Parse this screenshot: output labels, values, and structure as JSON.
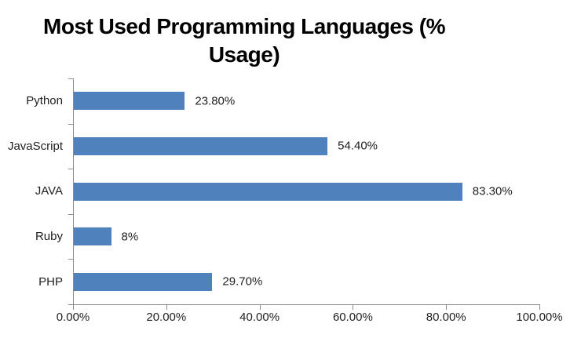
{
  "chart_data": {
    "type": "bar",
    "orientation": "horizontal",
    "title": "Most Used Programming Languages (% Usage)",
    "title_lines": [
      "Most Used Programming Languages (%",
      "Usage)"
    ],
    "categories": [
      "Python",
      "JavaScript",
      "JAVA",
      "Ruby",
      "PHP"
    ],
    "values": [
      23.8,
      54.4,
      83.3,
      8,
      29.7
    ],
    "data_labels": [
      "23.80%",
      "54.40%",
      "83.30%",
      "8%",
      "29.70%"
    ],
    "x_tick_labels": [
      "0.00%",
      "20.00%",
      "40.00%",
      "60.00%",
      "80.00%",
      "100.00%"
    ],
    "x_tick_values": [
      0,
      20,
      40,
      60,
      80,
      100
    ],
    "xlim": [
      0,
      100
    ],
    "xlabel": "",
    "ylabel": "",
    "grid": false,
    "legend": "none",
    "bar_color": "#4F81BD",
    "axis_color": "#8C8C8C",
    "label_color": "#1F1F1F"
  }
}
